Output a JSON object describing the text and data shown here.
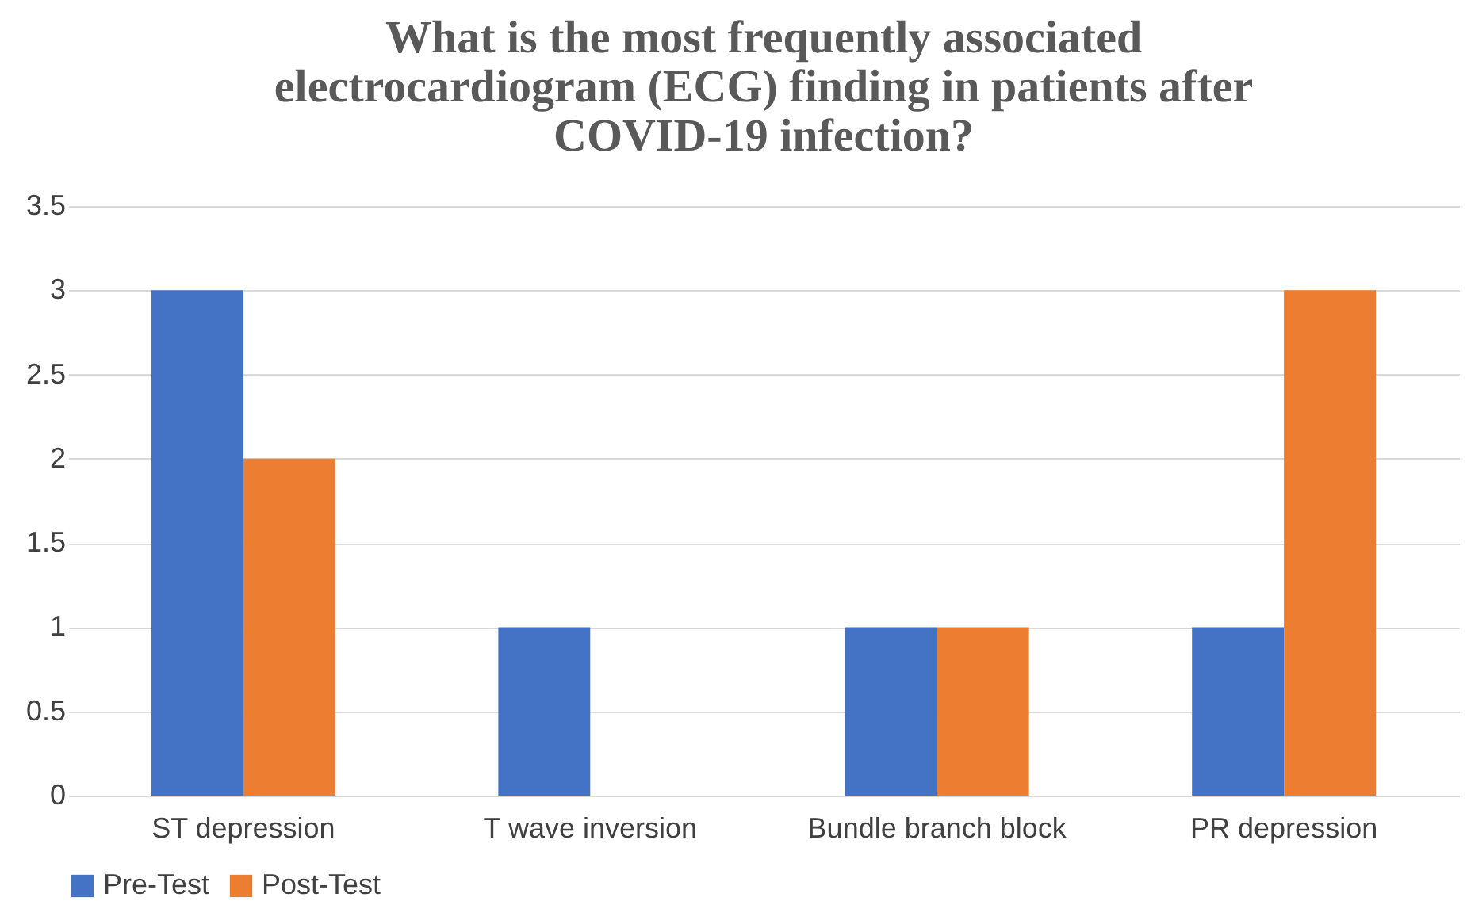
{
  "chart_data": {
    "type": "bar",
    "title": "What is the most frequently associated electrocardiogram (ECG) finding in patients after COVID-19 infection?",
    "categories": [
      "ST depression",
      "T wave inversion",
      "Bundle branch block",
      "PR depression"
    ],
    "series": [
      {
        "name": "Pre-Test",
        "color": "#4472c4",
        "values": [
          3,
          1,
          1,
          1
        ]
      },
      {
        "name": "Post-Test",
        "color": "#ed7d31",
        "values": [
          2,
          0,
          1,
          3
        ]
      }
    ],
    "ylim": [
      0,
      3.5
    ],
    "yticks": [
      0,
      0.5,
      1,
      1.5,
      2,
      2.5,
      3,
      3.5
    ],
    "grid": "y",
    "legend": "bottom"
  }
}
